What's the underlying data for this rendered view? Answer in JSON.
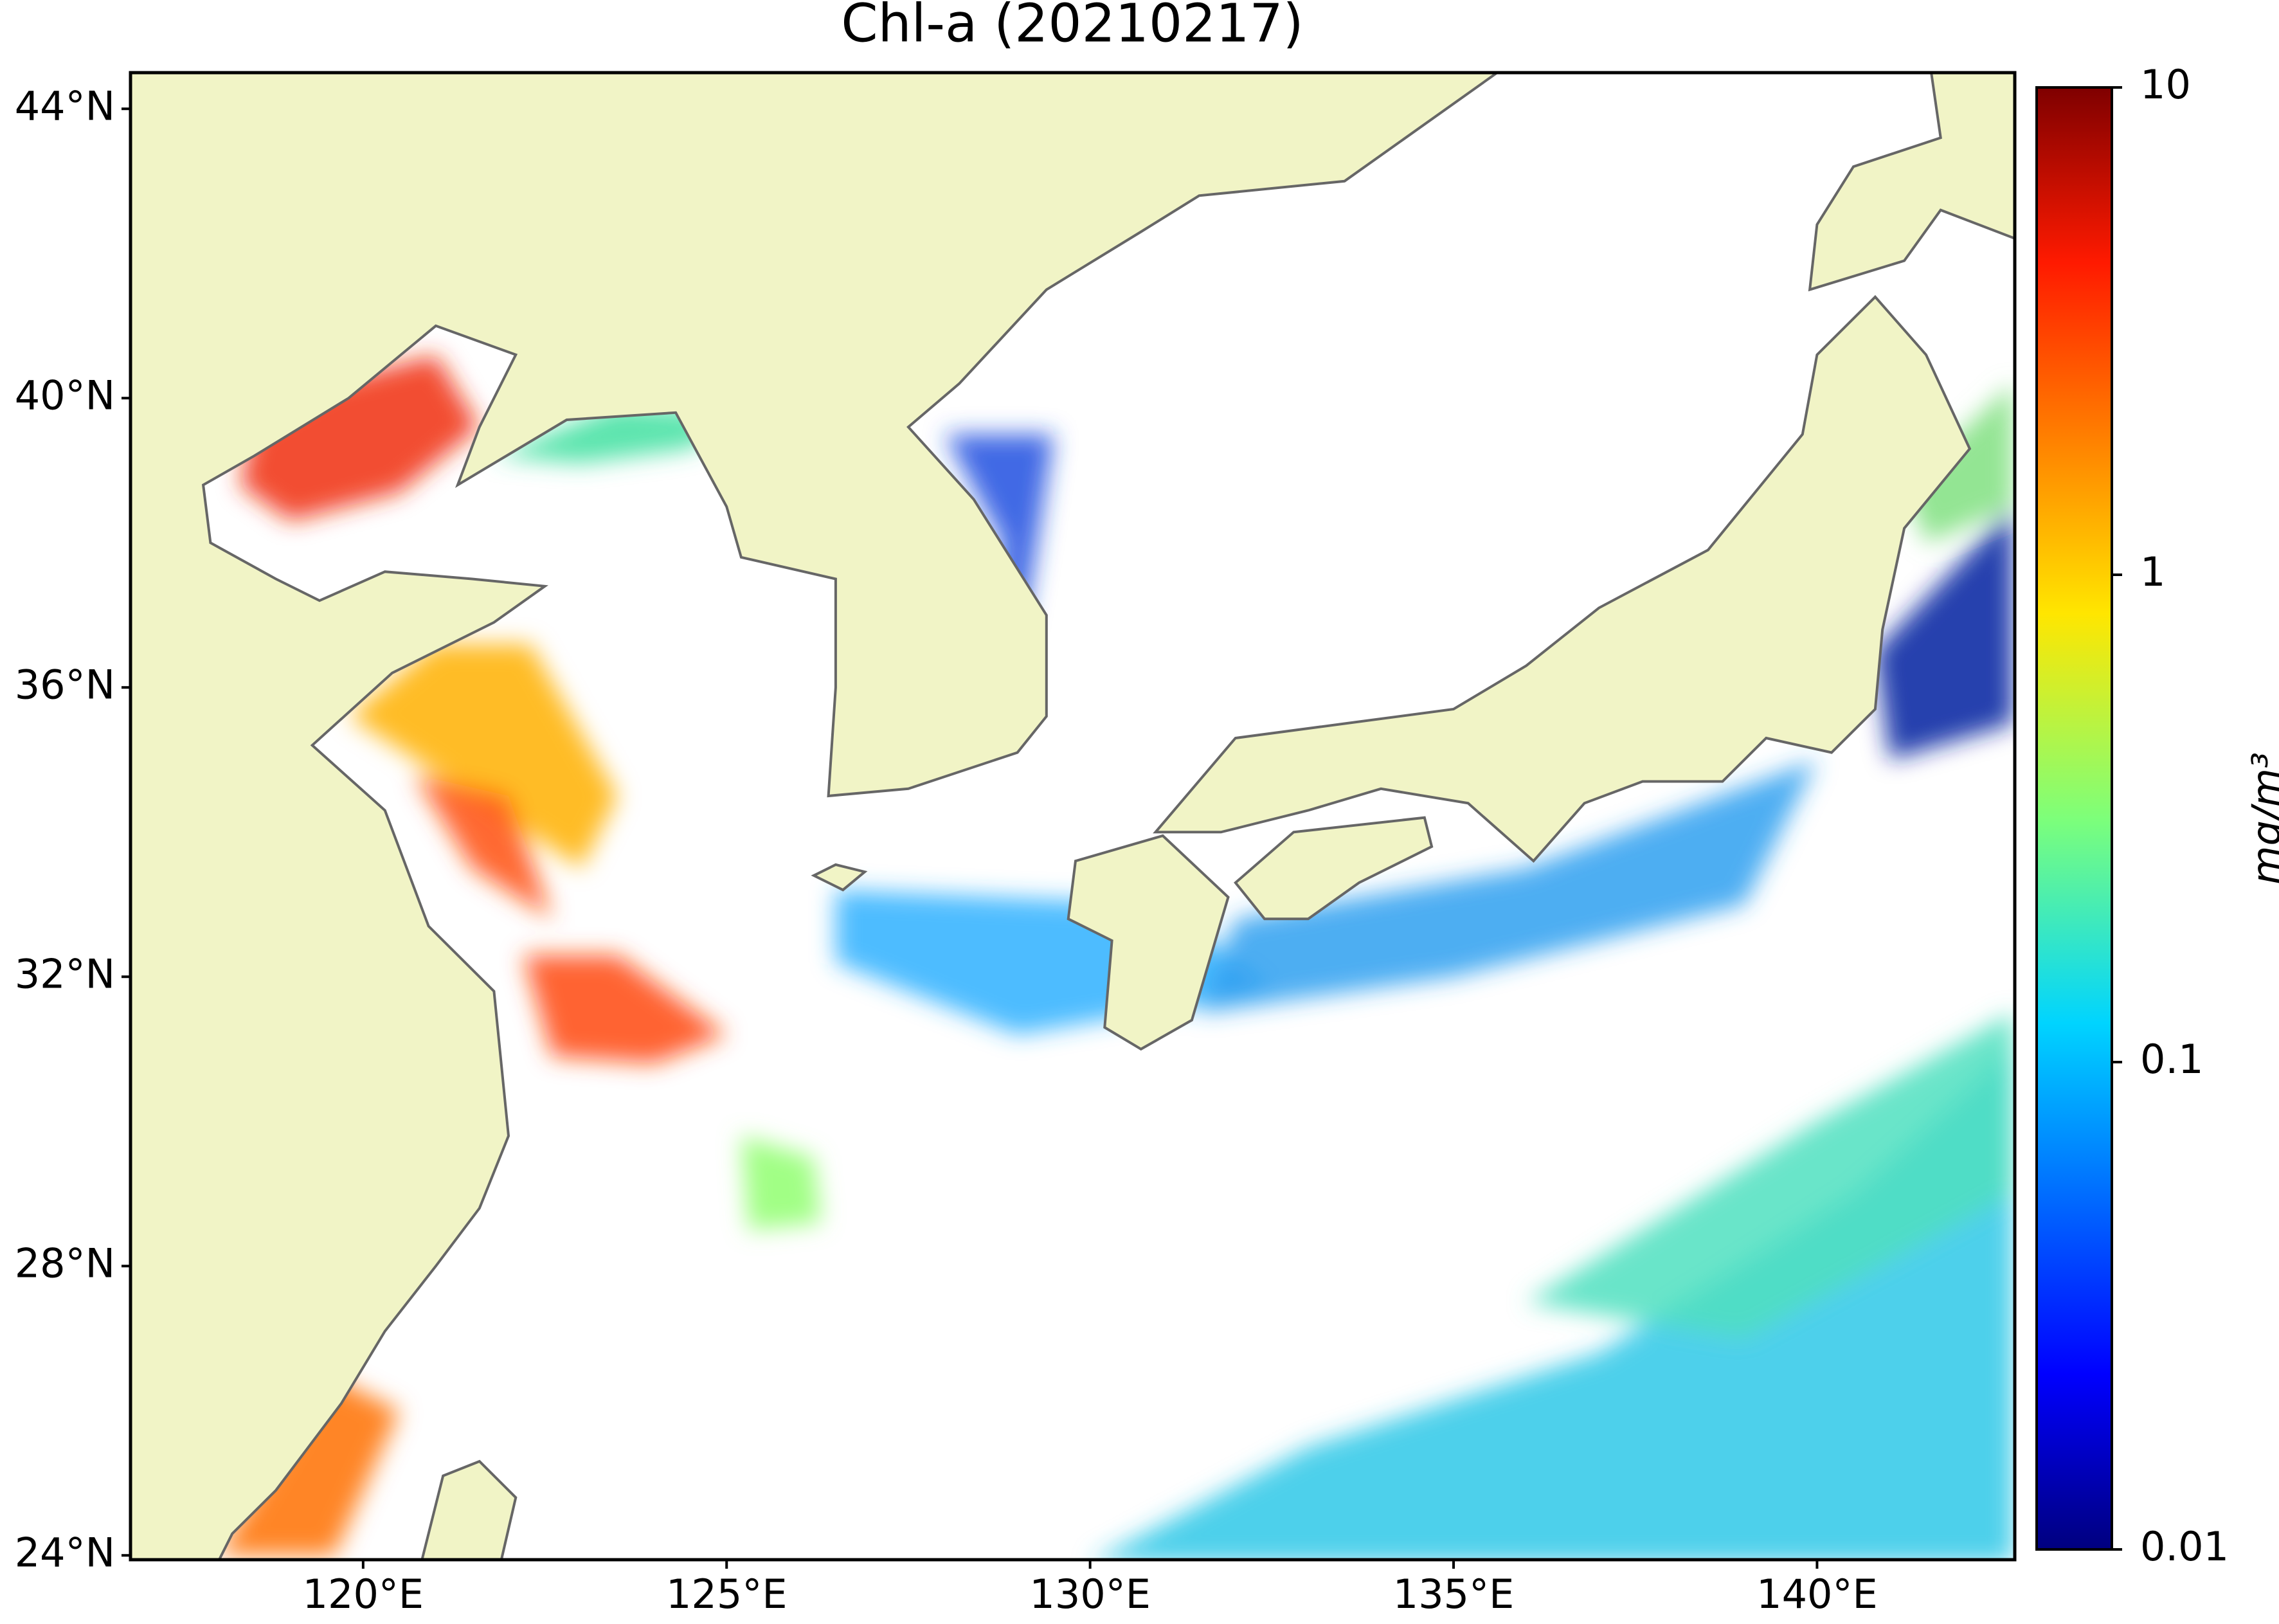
{
  "map": {
    "title": "Chl-a (20210217)",
    "xlim": [
      116.8,
      142.72
    ],
    "ylim": [
      23.94,
      44.5
    ],
    "xticks": [
      {
        "value": 120,
        "label": "120°E"
      },
      {
        "value": 125,
        "label": "125°E"
      },
      {
        "value": 130,
        "label": "130°E"
      },
      {
        "value": 135,
        "label": "135°E"
      },
      {
        "value": 140,
        "label": "140°E"
      }
    ],
    "yticks": [
      {
        "value": 24,
        "label": "24°N"
      },
      {
        "value": 28,
        "label": "28°N"
      },
      {
        "value": 32,
        "label": "32°N"
      },
      {
        "value": 36,
        "label": "36°N"
      },
      {
        "value": 40,
        "label": "40°N"
      },
      {
        "value": 44,
        "label": "44°N"
      }
    ],
    "colorbar": {
      "label": "mg/m³",
      "log": true,
      "lim": [
        0.01,
        10
      ],
      "ticks": [
        10,
        1,
        0.1,
        0.01
      ],
      "colormap": "jet"
    }
  }
}
